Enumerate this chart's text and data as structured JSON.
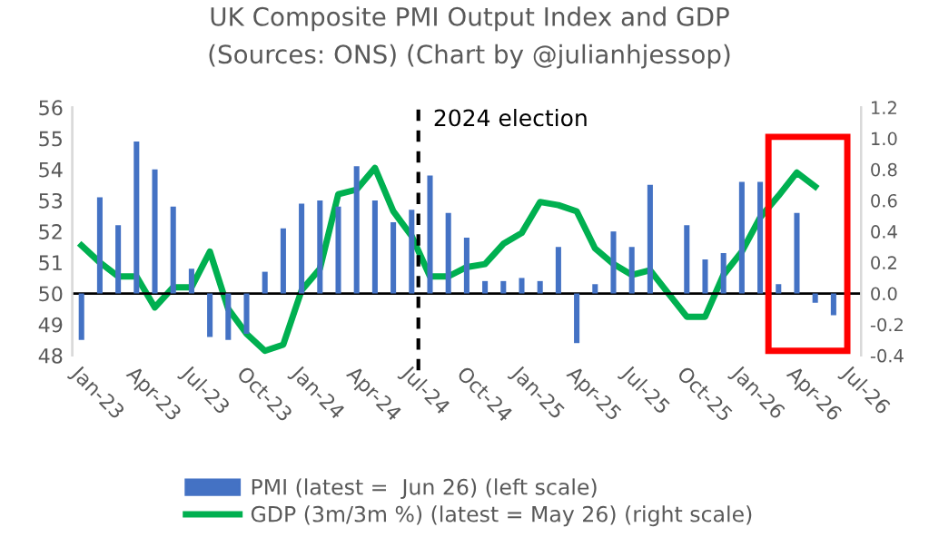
{
  "chart_data": {
    "type": "bar",
    "title": "UK Composite PMI Output Index and GDP",
    "subtitle": "(Sources: ONS) (Chart by @julianhjessop)",
    "x": [
      "2023-01",
      "2023-02",
      "2023-03",
      "2023-04",
      "2023-05",
      "2023-06",
      "2023-07",
      "2023-08",
      "2023-09",
      "2023-10",
      "2023-11",
      "2023-12",
      "2024-01",
      "2024-02",
      "2024-03",
      "2024-04",
      "2024-05",
      "2024-06",
      "2024-07",
      "2024-08",
      "2024-09",
      "2024-10",
      "2024-11",
      "2024-12",
      "2025-01",
      "2025-02",
      "2025-03",
      "2025-04",
      "2025-05",
      "2025-06",
      "2025-07",
      "2025-08",
      "2025-09",
      "2025-10",
      "2025-11",
      "2025-12",
      "2026-01",
      "2026-02",
      "2026-03",
      "2026-04",
      "2026-05",
      "2026-06"
    ],
    "series": [
      {
        "name": "PMI (latest =  Jun 26) (left scale)",
        "color": "#4472c4",
        "values": [
          -1.5,
          3.1,
          2.2,
          4.9,
          4.0,
          2.8,
          0.8,
          -1.4,
          -1.5,
          -1.3,
          0.7,
          2.1,
          2.9,
          3.0,
          2.8,
          4.1,
          3.0,
          2.3,
          2.7,
          3.8,
          2.6,
          1.8,
          0.4,
          0.4,
          0.5,
          0.4,
          1.5,
          -1.6,
          0.3,
          2.0,
          1.5,
          3.5,
          null,
          2.2,
          1.1,
          1.3,
          3.6,
          3.6,
          0.3,
          2.6,
          -0.3,
          -0.7
        ],
        "base": [
          50,
          50,
          50,
          50,
          50,
          50,
          50,
          50,
          50,
          50,
          50,
          50,
          50,
          50,
          50,
          50,
          50,
          50,
          50,
          50,
          50,
          50,
          50,
          50,
          50,
          50,
          50,
          50,
          50,
          50,
          50,
          50,
          null,
          50,
          50,
          50,
          50,
          50,
          50,
          50,
          50,
          50
        ]
      },
      {
        "name": "GDP (3m/3m %) (latest = May 26) (right scale)",
        "type": "line",
        "axis": "y2",
        "color": "#00b050",
        "x": [
          "2023-01",
          "2023-02",
          "2023-03",
          "2023-04",
          "2023-05",
          "2023-06",
          "2023-07",
          "2023-08",
          "2023-09",
          "2023-10",
          "2023-11",
          "2023-12",
          "2024-01",
          "2024-02",
          "2024-03",
          "2024-04",
          "2024-05",
          "2024-06",
          "2024-07",
          "2024-08",
          "2024-09",
          "2024-10",
          "2024-11",
          "2024-12",
          "2025-01",
          "2025-02",
          "2025-03",
          "2025-04",
          "2025-05",
          "2025-06",
          "2025-07",
          "2025-08",
          "2025-09",
          "2025-10",
          "2025-11",
          "2025-12",
          "2026-01",
          "2026-02",
          "2026-03",
          "2026-04",
          "2026-05"
        ],
        "values": [
          0.31,
          0.2,
          0.11,
          0.11,
          -0.09,
          0.04,
          0.04,
          0.27,
          -0.1,
          -0.26,
          -0.37,
          -0.33,
          0.02,
          0.16,
          0.64,
          0.67,
          0.81,
          0.53,
          0.37,
          0.11,
          0.11,
          0.17,
          0.19,
          0.32,
          0.39,
          0.59,
          0.57,
          0.53,
          0.29,
          0.19,
          0.12,
          0.15,
          0.0,
          -0.15,
          -0.15,
          0.12,
          0.27,
          0.49,
          0.63,
          0.78,
          0.69
        ]
      }
    ],
    "xlim": [
      "2022-12-16",
      "2026-07-16"
    ],
    "xticks": [
      {
        "value": "2023-01",
        "label": "Jan-23"
      },
      {
        "value": "2023-04",
        "label": "Apr-23"
      },
      {
        "value": "2023-07",
        "label": "Jul-23"
      },
      {
        "value": "2023-10",
        "label": "Oct-23"
      },
      {
        "value": "2024-01",
        "label": "Jan-24"
      },
      {
        "value": "2024-04",
        "label": "Apr-24"
      },
      {
        "value": "2024-07",
        "label": "Jul-24"
      },
      {
        "value": "2024-10",
        "label": "Oct-24"
      },
      {
        "value": "2025-01",
        "label": "Jan-25"
      },
      {
        "value": "2025-04",
        "label": "Apr-25"
      },
      {
        "value": "2025-07",
        "label": "Jul-25"
      },
      {
        "value": "2025-10",
        "label": "Oct-25"
      },
      {
        "value": "2026-01",
        "label": "Jan-26"
      },
      {
        "value": "2026-04",
        "label": "Apr-26"
      },
      {
        "value": "2026-07",
        "label": "Jul-26"
      }
    ],
    "ylim": [
      48,
      56
    ],
    "yticks": [
      48,
      49,
      50,
      51,
      52,
      53,
      54,
      55,
      56
    ],
    "y2lim": [
      -0.4,
      1.2
    ],
    "y2ticks": [
      {
        "value": -0.4,
        "label": "-0.4"
      },
      {
        "value": -0.2,
        "label": "-0.2"
      },
      {
        "value": 0,
        "label": "0.0"
      },
      {
        "value": 0.2,
        "label": "0.2"
      },
      {
        "value": 0.4,
        "label": "0.4"
      },
      {
        "value": 0.6,
        "label": "0.6"
      },
      {
        "value": 0.8,
        "label": "0.8"
      },
      {
        "value": 1.0,
        "label": "1.0"
      },
      {
        "value": 1.2,
        "label": "1.2"
      }
    ],
    "ref_lines": [
      {
        "axis": "y",
        "value": 50,
        "color": "#000000",
        "line_style": "solid"
      },
      {
        "axis": "x",
        "value": "2024-07-12",
        "label": "2024 election",
        "color": "#000000",
        "line_style": "dashed"
      }
    ],
    "legend": "bottom",
    "grid": false
  }
}
